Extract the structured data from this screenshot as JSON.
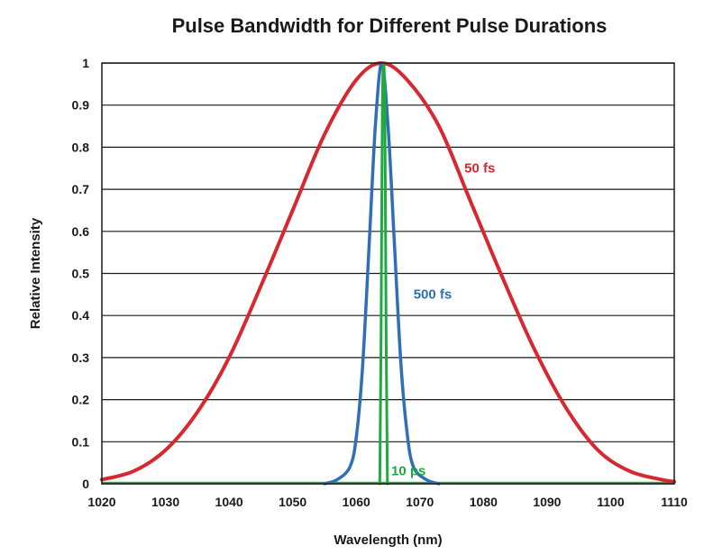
{
  "chart_data": {
    "type": "line",
    "title": "Pulse Bandwidth for Different Pulse Durations",
    "xlabel": "Wavelength (nm)",
    "ylabel": "Relative Intensity",
    "xlim": [
      1020,
      1110
    ],
    "ylim": [
      0,
      1
    ],
    "grid": "horizontal",
    "x_ticks": [
      "1020",
      "1030",
      "1040",
      "1050",
      "1060",
      "1070",
      "1080",
      "1090",
      "1100",
      "1110"
    ],
    "y_ticks": [
      "0",
      "0.1",
      "0.2",
      "0.3",
      "0.4",
      "0.5",
      "0.6",
      "0.7",
      "0.8",
      "0.9",
      "1"
    ],
    "series": [
      {
        "name": "50 fs",
        "color": "#d7282f",
        "x": [
          1020,
          1025,
          1030,
          1035,
          1040,
          1045,
          1050,
          1055,
          1060,
          1064,
          1068,
          1073,
          1078,
          1083,
          1088,
          1093,
          1098,
          1103,
          1108,
          1110
        ],
        "y": [
          0.01,
          0.03,
          0.08,
          0.17,
          0.3,
          0.47,
          0.65,
          0.83,
          0.96,
          1.0,
          0.96,
          0.85,
          0.67,
          0.49,
          0.32,
          0.18,
          0.08,
          0.03,
          0.01,
          0.005
        ]
      },
      {
        "name": "500 fs",
        "color": "#2e6fb5",
        "x": [
          1055,
          1057,
          1059,
          1060,
          1061,
          1062,
          1063,
          1064,
          1065,
          1066,
          1067,
          1068,
          1069,
          1071,
          1073
        ],
        "y": [
          0.0,
          0.01,
          0.04,
          0.11,
          0.28,
          0.56,
          0.85,
          1.0,
          0.85,
          0.57,
          0.29,
          0.12,
          0.04,
          0.01,
          0.0
        ]
      },
      {
        "name": "10 ps",
        "color": "#1faa3f",
        "x": [
          1063.7,
          1063.9,
          1064.1,
          1064.3,
          1064.5,
          1064.7,
          1064.9
        ],
        "y": [
          0.0,
          0.35,
          0.88,
          1.0,
          0.88,
          0.35,
          0.0
        ]
      }
    ],
    "annotations": [
      {
        "text": "50 fs",
        "x": 1077,
        "y": 0.74,
        "color": "#d7282f"
      },
      {
        "text": "500 fs",
        "x": 1069,
        "y": 0.44,
        "color": "#2e6fb5"
      },
      {
        "text": "10 ps",
        "x": 1065.5,
        "y": 0.02,
        "color": "#1faa3f"
      }
    ]
  }
}
